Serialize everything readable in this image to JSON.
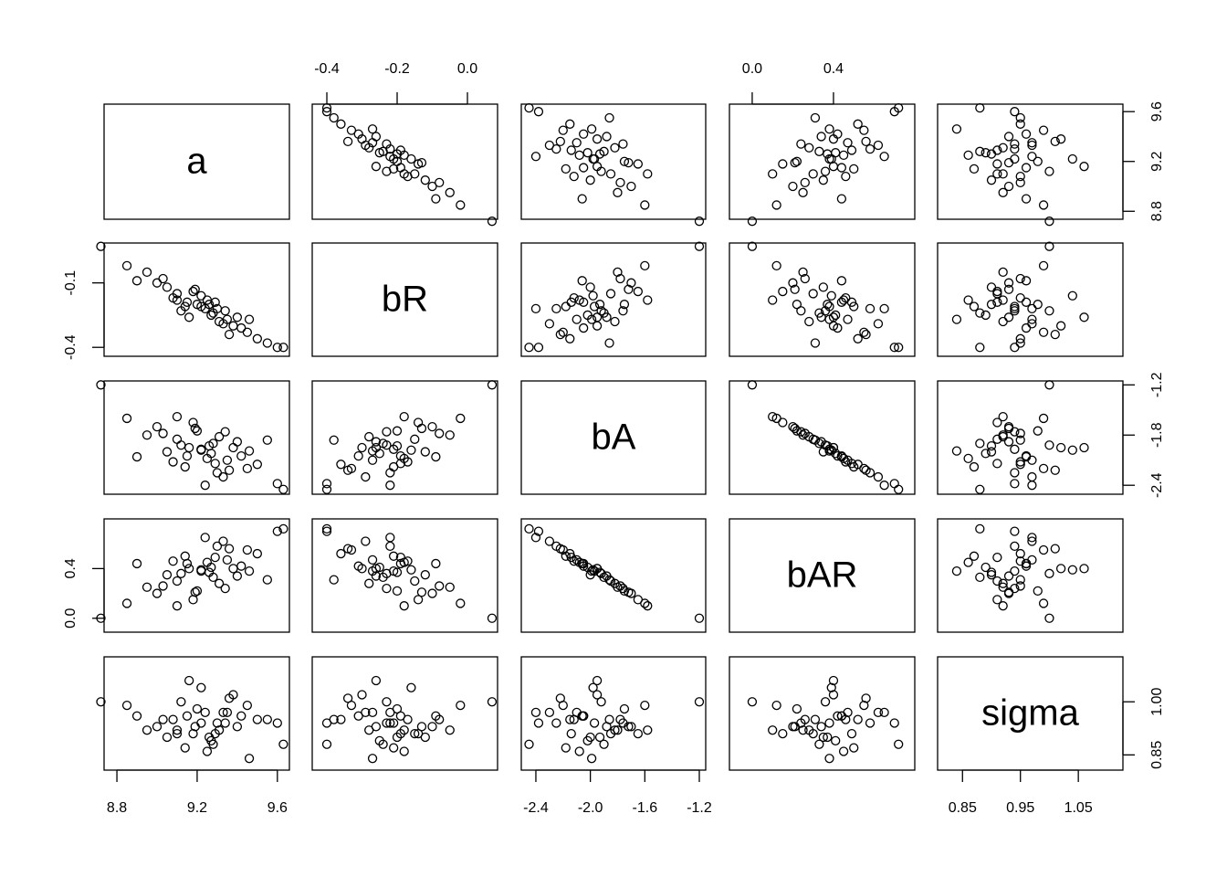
{
  "chart_data": {
    "type": "scatter-matrix",
    "variables": [
      {
        "name": "a",
        "lim": [
          8.736,
          9.66
        ],
        "xticks": [
          8.8,
          9.2,
          9.6
        ],
        "yticks": [
          8.8,
          9.2,
          9.6
        ],
        "values": [
          9.22,
          9.35,
          9.1,
          9.45,
          9.0,
          9.28,
          9.15,
          9.38,
          9.05,
          9.3,
          9.2,
          8.95,
          9.5,
          9.25,
          9.12,
          9.4,
          9.33,
          9.18,
          9.08,
          9.27,
          8.85,
          9.6,
          9.22,
          9.31,
          9.14,
          9.42,
          9.03,
          9.26,
          9.36,
          9.19,
          8.72,
          9.63,
          9.24,
          9.1,
          9.46,
          8.9,
          9.55,
          9.29,
          9.16,
          9.34
        ]
      },
      {
        "name": "bR",
        "lim": [
          -0.4416,
          0.0857
        ],
        "xticks": [
          -0.4,
          -0.2,
          {
            "value": 0,
            "label": "0.0"
          }
        ],
        "yticks": [
          -0.1,
          -0.4
        ],
        "values": [
          -0.21,
          -0.27,
          -0.15,
          -0.33,
          -0.1,
          -0.24,
          -0.19,
          -0.3,
          -0.12,
          -0.22,
          -0.2,
          -0.05,
          -0.36,
          -0.18,
          -0.23,
          -0.26,
          -0.29,
          -0.14,
          -0.17,
          -0.25,
          -0.02,
          -0.4,
          -0.16,
          -0.28,
          -0.21,
          -0.31,
          -0.08,
          -0.2,
          -0.34,
          -0.13,
          0.07,
          -0.4,
          -0.22,
          -0.18,
          -0.27,
          -0.09,
          -0.38,
          -0.19,
          -0.26,
          -0.23
        ]
      },
      {
        "name": "bA",
        "lim": [
          -2.507,
          -1.153
        ],
        "xticks": [
          -2.4,
          {
            "value": -2,
            "label": "-2.0"
          },
          -1.6,
          -1.2
        ],
        "yticks": [
          -1.2,
          -1.8,
          -2.4
        ],
        "values": [
          -1.97,
          -2.1,
          -1.85,
          -2.2,
          -1.7,
          -1.9,
          -2.05,
          -1.95,
          -2.0,
          -2.25,
          -1.75,
          -1.8,
          -2.15,
          -2.08,
          -1.92,
          -1.88,
          -2.3,
          -1.65,
          -2.12,
          -2.02,
          -1.6,
          -2.38,
          -1.98,
          -1.82,
          -2.18,
          -2.05,
          -1.78,
          -1.93,
          -2.22,
          -1.72,
          -1.2,
          -2.45,
          -2.4,
          -1.58,
          -1.99,
          -2.06,
          -1.86,
          -2.14,
          -1.95,
          -1.76
        ]
      },
      {
        "name": "bAR",
        "lim": [
          -0.112,
          0.8
        ],
        "xticks": [
          {
            "value": 0,
            "label": "0.0"
          },
          0.4
        ],
        "yticks": [
          {
            "value": 0,
            "label": "0.0"
          },
          0.4
        ],
        "values": [
          0.38,
          0.47,
          0.3,
          0.55,
          0.2,
          0.33,
          0.44,
          0.4,
          0.35,
          0.58,
          0.22,
          0.25,
          0.52,
          0.45,
          0.36,
          0.34,
          0.62,
          0.15,
          0.46,
          0.41,
          0.12,
          0.7,
          0.39,
          0.28,
          0.5,
          0.42,
          0.26,
          0.37,
          0.56,
          0.21,
          0.0,
          0.72,
          0.65,
          0.1,
          0.38,
          0.44,
          0.31,
          0.49,
          0.4,
          0.24
        ]
      },
      {
        "name": "sigma",
        "lim": [
          0.807,
          1.127
        ],
        "xticks": [
          0.85,
          0.95,
          1.05
        ],
        "yticks": [
          0.85,
          {
            "value": 1,
            "label": "1.00"
          }
        ],
        "values": [
          0.94,
          0.97,
          0.91,
          0.99,
          0.93,
          0.88,
          0.96,
          1.02,
          0.9,
          0.94,
          0.98,
          0.92,
          0.95,
          0.86,
          1.0,
          0.93,
          0.97,
          0.91,
          0.95,
          0.89,
          0.99,
          0.94,
          1.04,
          0.92,
          0.87,
          0.96,
          0.95,
          0.9,
          1.01,
          0.93,
          1.0,
          0.88,
          0.97,
          0.92,
          0.84,
          0.96,
          0.95,
          0.91,
          1.06,
          0.94
        ]
      }
    ]
  }
}
